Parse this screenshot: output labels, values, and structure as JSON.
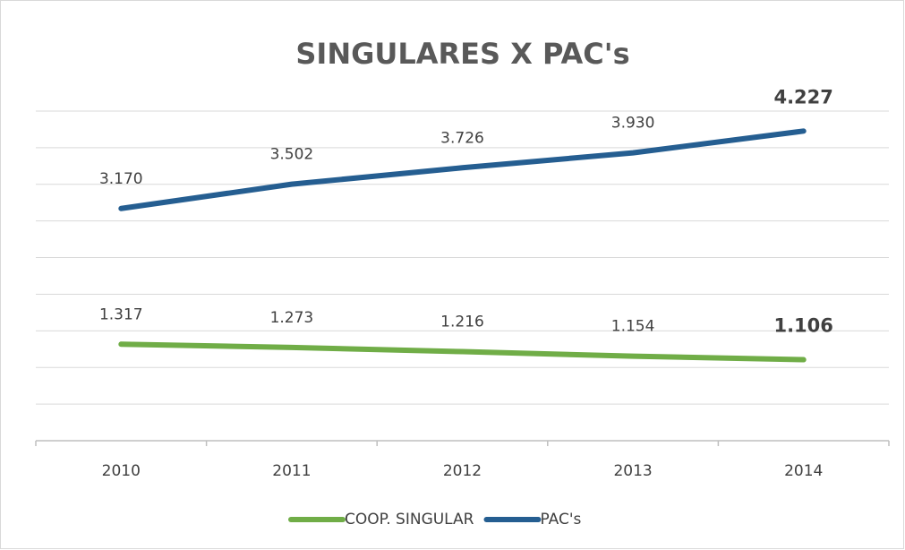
{
  "chart_data": {
    "type": "line",
    "title": "SINGULARES X PAC's",
    "categories": [
      "2010",
      "2011",
      "2012",
      "2013",
      "2014"
    ],
    "series": [
      {
        "name": "COOP. SINGULAR",
        "color": "#70ad47",
        "values": [
          1317,
          1273,
          1216,
          1154,
          1106
        ],
        "value_labels": [
          "1.317",
          "1.273",
          "1.216",
          "1.154",
          "1.106"
        ]
      },
      {
        "name": "PAC's",
        "color": "#255e91",
        "values": [
          3170,
          3502,
          3726,
          3930,
          4227
        ],
        "value_labels": [
          "3.170",
          "3.502",
          "3.726",
          "3.930",
          "4.227"
        ]
      }
    ],
    "ylim": [
      0,
      4500
    ],
    "yticks": [
      0,
      500,
      1000,
      1500,
      2000,
      2500,
      3000,
      3500,
      4000,
      4500
    ],
    "grid": true,
    "legend": "bottom"
  }
}
